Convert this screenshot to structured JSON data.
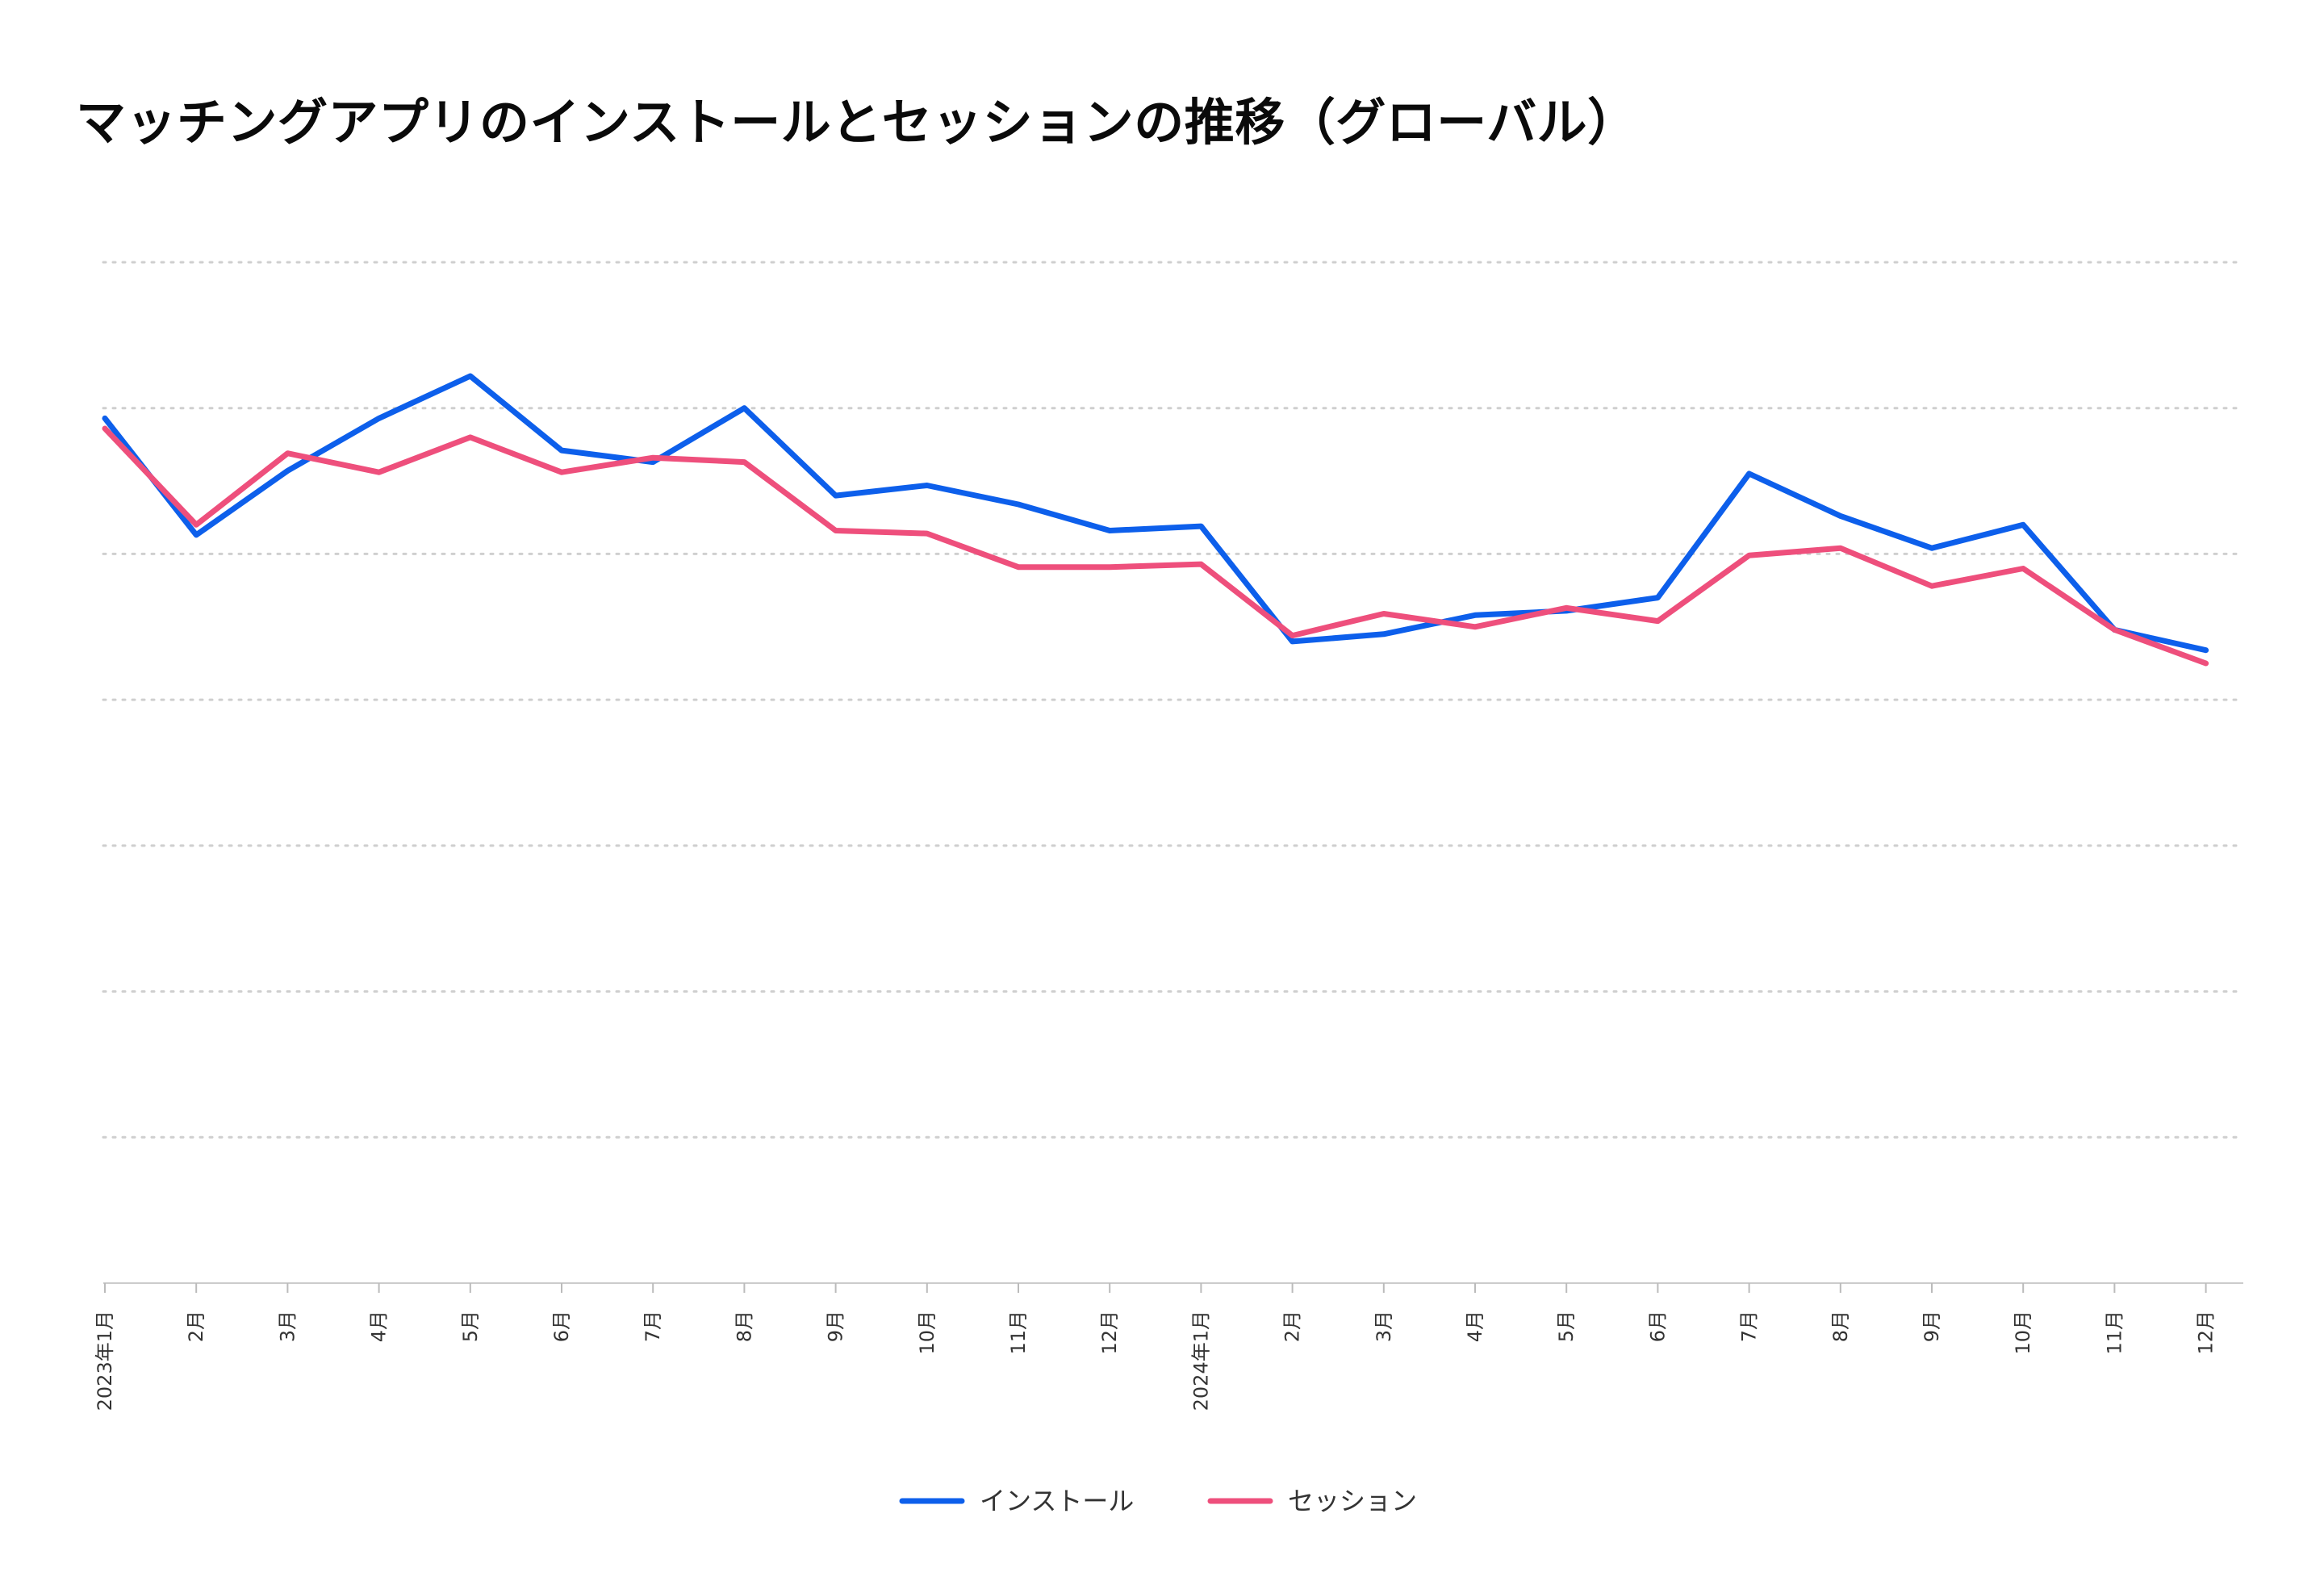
{
  "chart_data": {
    "type": "line",
    "title": "マッチングアプリのインストールとセッションの推移（グローバル）",
    "xlabel": "",
    "ylabel": "",
    "categories": [
      "2023年1月",
      "2月",
      "3月",
      "4月",
      "5月",
      "6月",
      "7月",
      "8月",
      "9月",
      "10月",
      "11月",
      "12月",
      "2024年1月",
      "2月",
      "3月",
      "4月",
      "5月",
      "6月",
      "7月",
      "8月",
      "9月",
      "10月",
      "11月",
      "12月"
    ],
    "ylim": [
      0,
      7
    ],
    "y_tick_labels_shown": false,
    "grid": "horizontal dotted",
    "legend_position": "bottom-center",
    "series": [
      {
        "name": "インストール",
        "color": "#0D5FEB",
        "values": [
          5.93,
          5.13,
          5.57,
          5.93,
          6.22,
          5.71,
          5.63,
          6.0,
          5.4,
          5.47,
          5.34,
          5.16,
          5.19,
          4.4,
          4.45,
          4.58,
          4.61,
          4.7,
          5.55,
          5.26,
          5.04,
          5.2,
          4.48,
          4.34
        ]
      },
      {
        "name": "セッション",
        "color": "#EE4F7C",
        "values": [
          5.86,
          5.2,
          5.69,
          5.56,
          5.8,
          5.56,
          5.66,
          5.63,
          5.16,
          5.14,
          4.91,
          4.91,
          4.93,
          4.44,
          4.59,
          4.5,
          4.63,
          4.54,
          4.99,
          5.04,
          4.78,
          4.9,
          4.48,
          4.25
        ]
      }
    ]
  }
}
